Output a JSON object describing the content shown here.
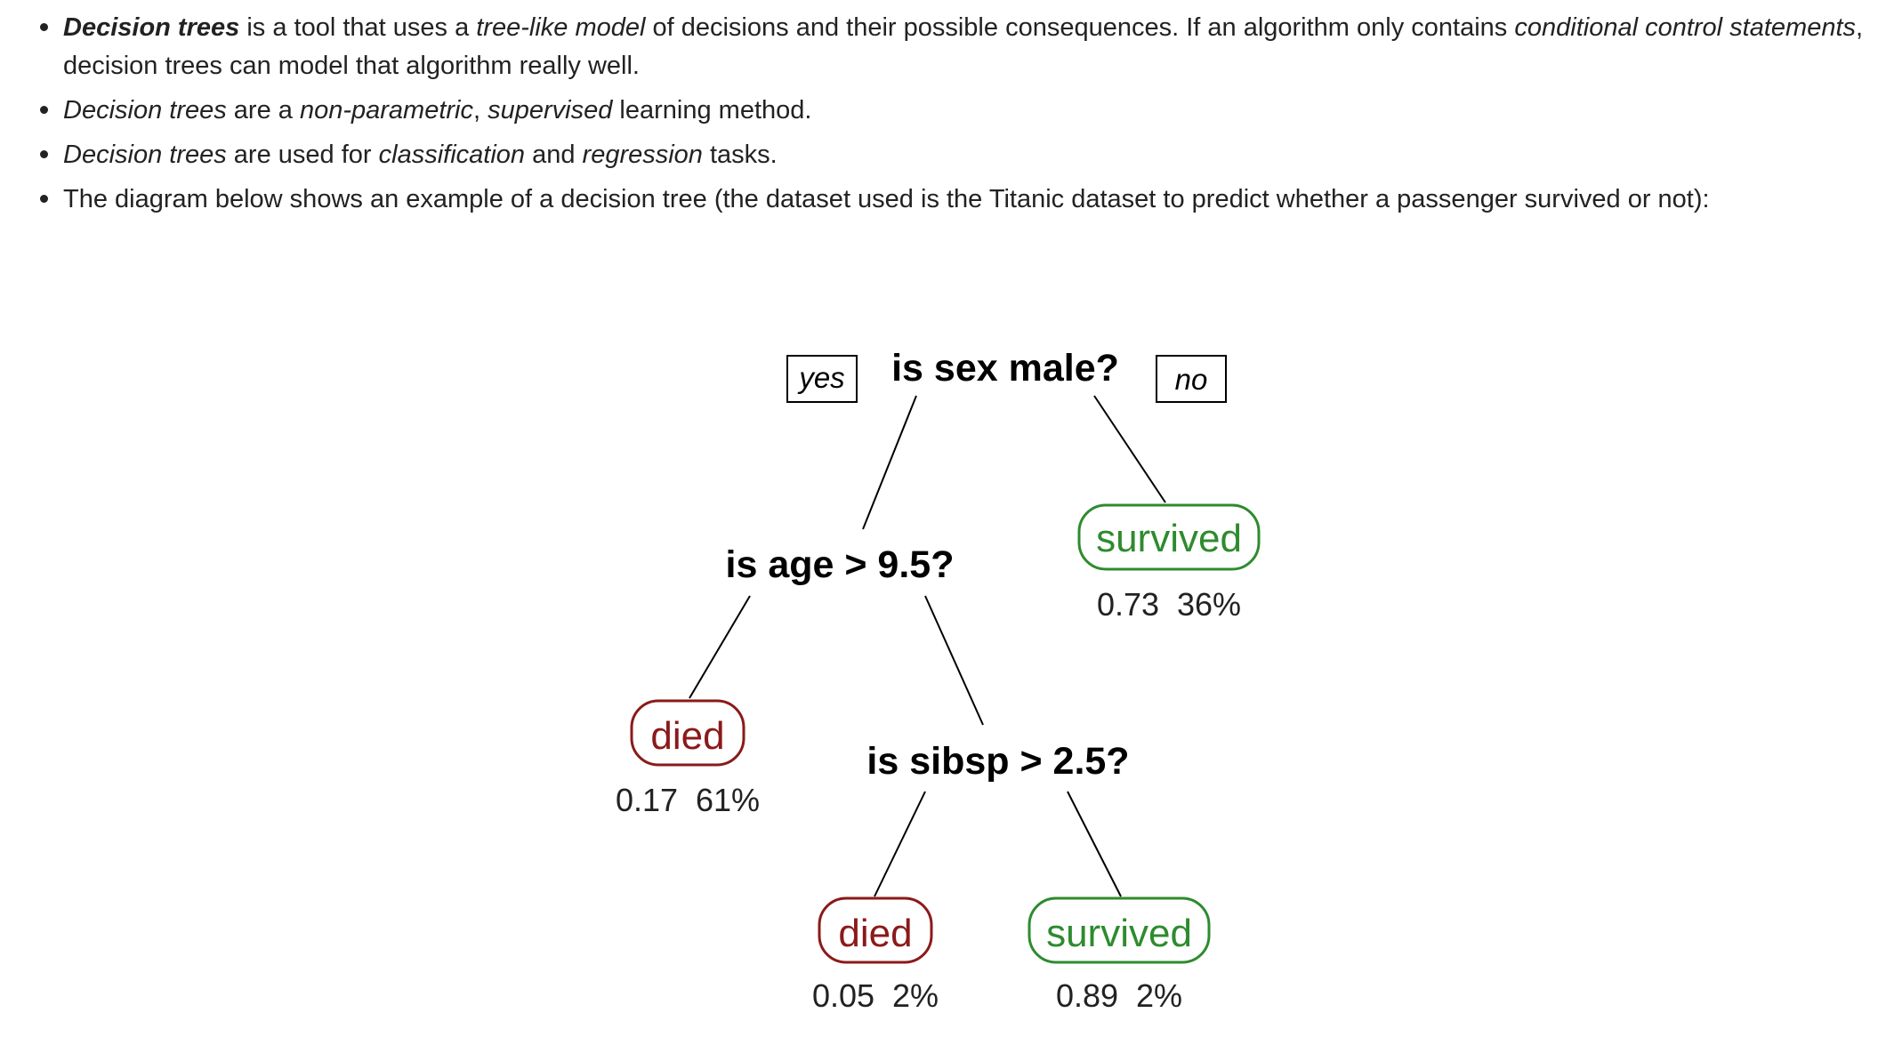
{
  "bullets": [
    {
      "parts": [
        {
          "text": "Decision trees",
          "style": "bi"
        },
        {
          "text": " is a tool that uses a ",
          "style": ""
        },
        {
          "text": "tree-like model",
          "style": "i"
        },
        {
          "text": " of decisions and their possible consequences. If an algorithm only contains ",
          "style": ""
        },
        {
          "text": "conditional control statements",
          "style": "i"
        },
        {
          "text": ", decision trees can model that algorithm really well.",
          "style": ""
        }
      ]
    },
    {
      "parts": [
        {
          "text": "Decision trees",
          "style": "i"
        },
        {
          "text": " are a ",
          "style": ""
        },
        {
          "text": "non-parametric",
          "style": "i"
        },
        {
          "text": ", ",
          "style": ""
        },
        {
          "text": "supervised",
          "style": "i"
        },
        {
          "text": " learning method.",
          "style": ""
        }
      ]
    },
    {
      "parts": [
        {
          "text": "Decision trees",
          "style": "i"
        },
        {
          "text": " are used for ",
          "style": ""
        },
        {
          "text": "classification",
          "style": "i"
        },
        {
          "text": " and ",
          "style": ""
        },
        {
          "text": "regression",
          "style": "i"
        },
        {
          "text": " tasks.",
          "style": ""
        }
      ]
    },
    {
      "parts": [
        {
          "text": "The diagram below shows an example of a decision tree (the dataset used is the Titanic dataset to predict whether a passenger survived or not):",
          "style": ""
        }
      ]
    }
  ],
  "tree": {
    "yes_label": "yes",
    "no_label": "no",
    "root_question": "is sex male?",
    "age_question": "is age > 9.5?",
    "sibsp_question": "is sibsp > 2.5?",
    "leaf_no": {
      "label": "survived",
      "stat": "0.73  36%"
    },
    "leaf_age_no": {
      "label": "died",
      "stat": "0.17  61%"
    },
    "leaf_sibsp_yes": {
      "label": "died",
      "stat": "0.05  2%"
    },
    "leaf_sibsp_no": {
      "label": "survived",
      "stat": "0.89  2%"
    },
    "colors": {
      "died": "#8b1a1a",
      "survived": "#2e8b2e",
      "edge": "#000000"
    }
  }
}
